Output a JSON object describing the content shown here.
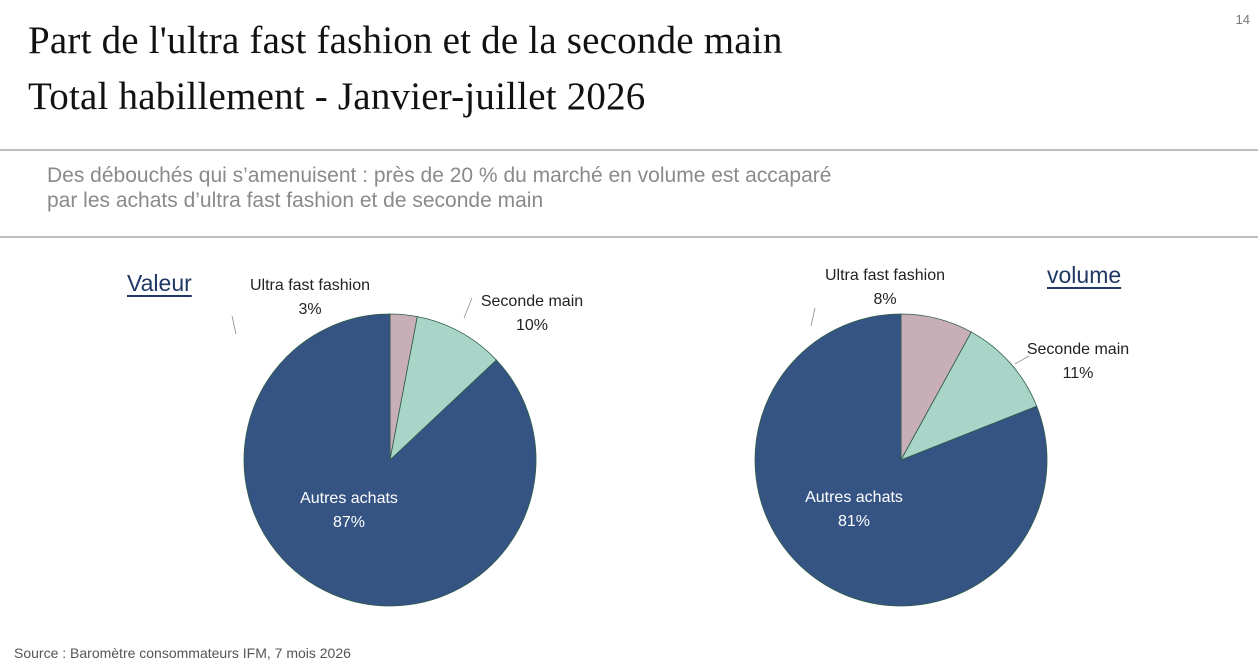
{
  "page_number": "14",
  "title": {
    "line1": "Part de l'ultra fast fashion et de la seconde main",
    "line2": "Total habillement - Janvier-juillet 2026"
  },
  "subtitle": {
    "line1": "Des débouchés qui s’amenuisent : près de 20 % du marché en volume est accaparé",
    "line2": "par les achats d’ultra fast fashion et de seconde main"
  },
  "source": "Source : Baromètre consommateurs IFM, 7 mois 2026",
  "colors": {
    "ultra_fast_fashion": "#c8aeb6",
    "seconde_main": "#a9d4c8",
    "autres_achats": "#355484",
    "slice_border": "#2e5b4b",
    "chart_title": "#1f3864"
  },
  "chart_data": [
    {
      "type": "pie",
      "title": "Valeur",
      "labels": [
        "Ultra fast fashion",
        "Seconde main",
        "Autres achats"
      ],
      "values": [
        3,
        10,
        87
      ],
      "value_labels": [
        "3%",
        "10%",
        "87%"
      ]
    },
    {
      "type": "pie",
      "title": "volume",
      "labels": [
        "Ultra fast fashion",
        "Seconde main",
        "Autres achats"
      ],
      "values": [
        8,
        11,
        81
      ],
      "value_labels": [
        "8%",
        "11%",
        "81%"
      ]
    }
  ]
}
